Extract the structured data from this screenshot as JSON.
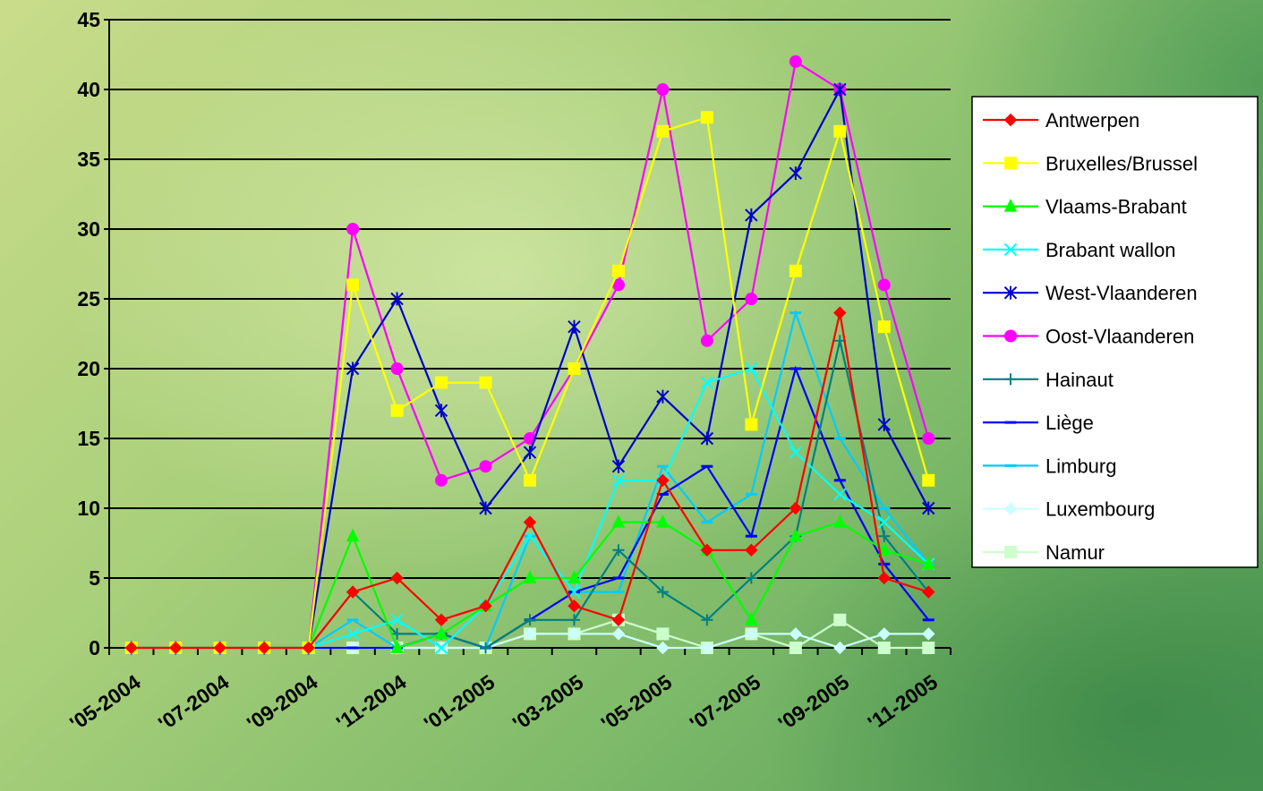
{
  "chart_data": {
    "type": "line",
    "x_tick_labels": [
      "'05-2004",
      "'07-2004",
      "'09-2004",
      "'11-2004",
      "'01-2005",
      "'03-2005",
      "'05-2005",
      "'07-2005",
      "'09-2005",
      "'11-2005"
    ],
    "y_ticks": [
      0,
      5,
      10,
      15,
      20,
      25,
      30,
      35,
      40,
      45
    ],
    "ylim": [
      0,
      45
    ],
    "grid": "horizontal",
    "legend_position": "right",
    "series": [
      {
        "name": "Antwerpen",
        "color": "#ff0000",
        "marker": "diamond",
        "values": [
          0,
          0,
          0,
          0,
          0,
          4,
          5,
          2,
          3,
          9,
          3,
          2,
          12,
          7,
          7,
          10,
          24,
          5,
          4
        ]
      },
      {
        "name": "Bruxelles/Brussel",
        "color": "#ffff00",
        "marker": "square",
        "values": [
          0,
          0,
          0,
          0,
          0,
          26,
          17,
          19,
          19,
          12,
          20,
          27,
          37,
          38,
          16,
          27,
          37,
          23,
          12
        ]
      },
      {
        "name": "Vlaams-Brabant",
        "color": "#00ff00",
        "marker": "triangle",
        "values": [
          0,
          0,
          0,
          0,
          0,
          8,
          0,
          1,
          3,
          5,
          5,
          9,
          9,
          7,
          2,
          8,
          9,
          7,
          6
        ]
      },
      {
        "name": "Brabant wallon",
        "color": "#00ffff",
        "marker": "x",
        "values": [
          0,
          0,
          0,
          0,
          0,
          1,
          2,
          0,
          3,
          8,
          4,
          12,
          12,
          19,
          20,
          14,
          11,
          9,
          6
        ]
      },
      {
        "name": "West-Vlaanderen",
        "color": "#0000cc",
        "marker": "star",
        "values": [
          0,
          0,
          0,
          0,
          0,
          20,
          25,
          17,
          10,
          14,
          23,
          13,
          18,
          15,
          31,
          34,
          40,
          16,
          10
        ]
      },
      {
        "name": "Oost-Vlaanderen",
        "color": "#ff00ff",
        "marker": "circle",
        "values": [
          0,
          0,
          0,
          0,
          0,
          30,
          20,
          12,
          13,
          15,
          20,
          26,
          40,
          22,
          25,
          42,
          40,
          26,
          15
        ]
      },
      {
        "name": "Hainaut",
        "color": "#008080",
        "marker": "plus",
        "values": [
          0,
          0,
          0,
          0,
          0,
          4,
          1,
          1,
          0,
          2,
          2,
          7,
          4,
          2,
          5,
          8,
          22,
          8,
          4
        ]
      },
      {
        "name": "Liège",
        "color": "#0000ff",
        "marker": "dash",
        "values": [
          0,
          0,
          0,
          0,
          0,
          0,
          0,
          1,
          0,
          2,
          4,
          5,
          11,
          13,
          8,
          20,
          12,
          6,
          2
        ]
      },
      {
        "name": "Limburg",
        "color": "#00ccff",
        "marker": "dash",
        "values": [
          0,
          0,
          0,
          0,
          0,
          2,
          0,
          1,
          0,
          8,
          4,
          4,
          13,
          9,
          11,
          24,
          15,
          10,
          6
        ]
      },
      {
        "name": "Luxembourg",
        "color": "#ccffff",
        "marker": "diamond",
        "values": [
          0,
          0,
          0,
          0,
          0,
          0,
          0,
          0,
          0,
          1,
          1,
          1,
          0,
          0,
          1,
          1,
          0,
          1,
          1
        ]
      },
      {
        "name": "Namur",
        "color": "#ccffcc",
        "marker": "square",
        "values": [
          0,
          0,
          0,
          0,
          0,
          0,
          0,
          0,
          0,
          1,
          1,
          2,
          1,
          0,
          1,
          0,
          2,
          0,
          0
        ]
      }
    ]
  }
}
